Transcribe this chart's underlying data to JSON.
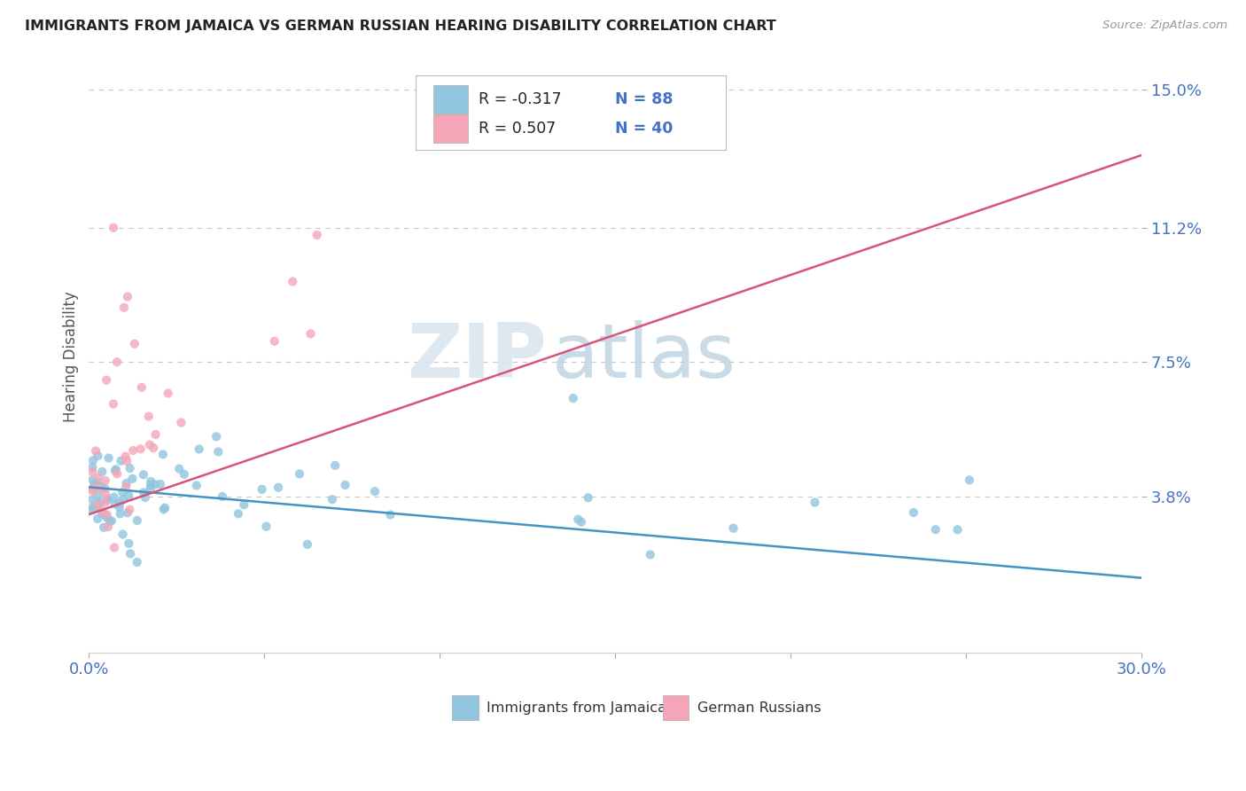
{
  "title": "IMMIGRANTS FROM JAMAICA VS GERMAN RUSSIAN HEARING DISABILITY CORRELATION CHART",
  "source_text": "Source: ZipAtlas.com",
  "ylabel": "Hearing Disability",
  "xlim": [
    0.0,
    0.3
  ],
  "ylim": [
    -0.005,
    0.158
  ],
  "yticks": [
    0.038,
    0.075,
    0.112,
    0.15
  ],
  "yticklabels": [
    "3.8%",
    "7.5%",
    "11.2%",
    "15.0%"
  ],
  "blue_color": "#92c5de",
  "blue_line_color": "#4393c3",
  "pink_color": "#f4a6b8",
  "pink_line_color": "#d6547a",
  "blue_label": "Immigrants from Jamaica",
  "pink_label": "German Russians",
  "watermark_zip": "ZIP",
  "watermark_atlas": "atlas",
  "background_color": "#ffffff",
  "grid_color": "#c8c8c8",
  "title_color": "#222222",
  "axis_label_color": "#4472c4",
  "blue_line_start_y": 0.0405,
  "blue_line_end_y": 0.0155,
  "pink_line_start_y": 0.033,
  "pink_line_end_y": 0.132
}
